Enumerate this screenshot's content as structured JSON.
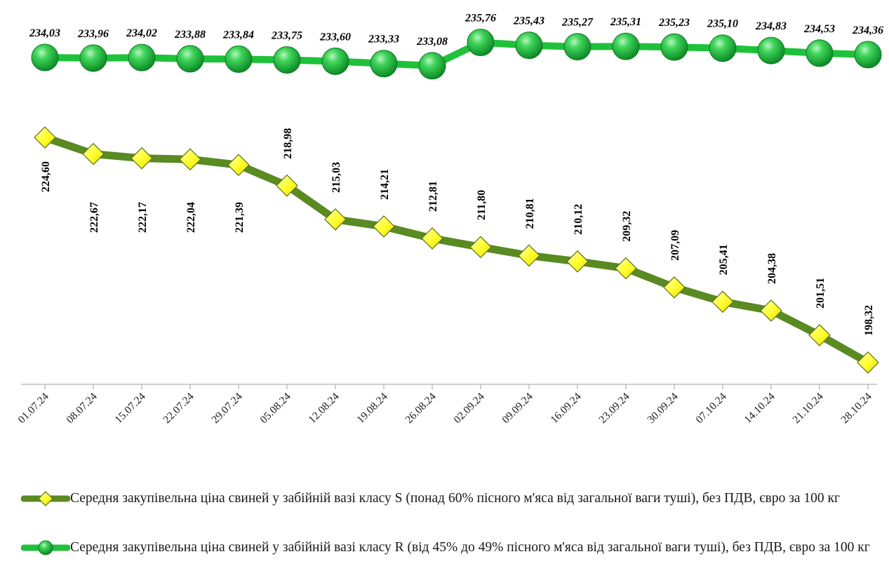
{
  "chart_data": {
    "type": "line",
    "categories": [
      "01.07.24",
      "08.07.24",
      "15.07.24",
      "22.07.24",
      "29.07.24",
      "05.08.24",
      "12.08.24",
      "19.08.24",
      "26.08.24",
      "02.09.24",
      "09.09.24",
      "16.09.24",
      "23.09.24",
      "30.09.24",
      "07.10.24",
      "14.10.24",
      "21.10.24",
      "28.10.24"
    ],
    "series": [
      {
        "name": "Середня закупівельна  ціна свиней у забійній вазі класу S (понад 60% пісного м'яса від загальної ваги туші),  без ПДВ, євро за 100 кг",
        "marker": "diamond",
        "line_color": "#5a8a22",
        "marker_color": "#ffff33",
        "values": [
          224.6,
          222.67,
          222.17,
          222.04,
          221.39,
          218.98,
          215.03,
          214.21,
          212.81,
          211.8,
          210.81,
          210.12,
          209.32,
          207.09,
          205.41,
          204.38,
          201.51,
          198.32
        ],
        "labels": [
          "224,60",
          "222,67",
          "222,17",
          "222,04",
          "221,39",
          "218,98",
          "215,03",
          "214,21",
          "212,81",
          "211,80",
          "210,81",
          "210,12",
          "209,32",
          "207,09",
          "205,41",
          "204,38",
          "201,51",
          "198,32"
        ]
      },
      {
        "name": "Середня закупівельна  ціна свиней у забійній вазі класу R (від 45% до 49% пісного м'яса від загальної ваги туші),  без ПДВ, євро за 100 кг",
        "marker": "circle",
        "line_color": "#1ec23a",
        "marker_color": "#22b83a",
        "values": [
          234.03,
          233.96,
          234.02,
          233.88,
          233.84,
          233.75,
          233.6,
          233.33,
          233.08,
          235.76,
          235.43,
          235.27,
          235.31,
          235.23,
          235.1,
          234.83,
          234.53,
          234.36
        ],
        "labels": [
          "234,03",
          "233,96",
          "234,02",
          "233,88",
          "233,84",
          "233,75",
          "233,60",
          "233,33",
          "233,08",
          "235,76",
          "235,43",
          "235,27",
          "235,31",
          "235,23",
          "235,10",
          "234,83",
          "234,53",
          "234,36"
        ]
      }
    ],
    "legend_position": "bottom",
    "grid": false
  }
}
